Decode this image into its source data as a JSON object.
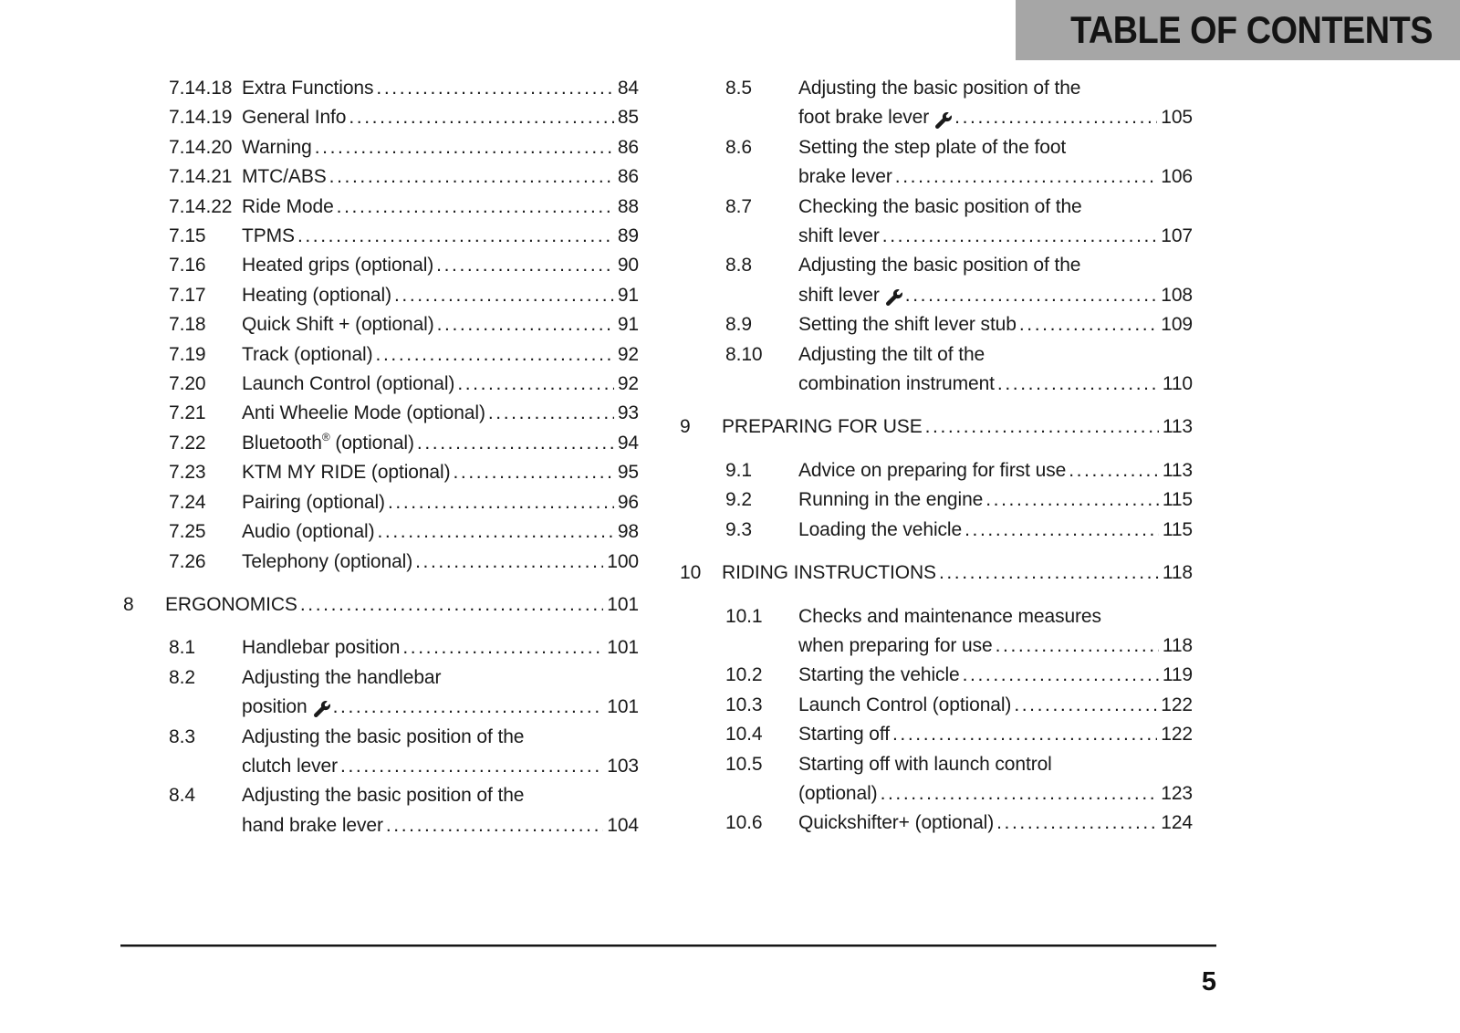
{
  "header": {
    "title": "TABLE OF CONTENTS"
  },
  "footer": {
    "page_number": "5"
  },
  "colors": {
    "header_bg": "#a6a6a6",
    "text": "#1a1a1a"
  },
  "icons": {
    "wrench": "wrench-icon"
  },
  "toc": {
    "columns": [
      {
        "blocks": [
          {
            "type": "entries",
            "items": [
              {
                "num": "7.14.18",
                "lines": [
                  "Extra Functions"
                ],
                "page": "84"
              },
              {
                "num": "7.14.19",
                "lines": [
                  "General Info"
                ],
                "page": "85"
              },
              {
                "num": "7.14.20",
                "lines": [
                  "Warning"
                ],
                "page": "86"
              },
              {
                "num": "7.14.21",
                "lines": [
                  "MTC/ABS"
                ],
                "page": "86"
              },
              {
                "num": "7.14.22",
                "lines": [
                  "Ride Mode"
                ],
                "page": "88"
              },
              {
                "num": "7.15",
                "lines": [
                  "TPMS"
                ],
                "page": "89"
              },
              {
                "num": "7.16",
                "lines": [
                  "Heated grips (optional)"
                ],
                "page": "90"
              },
              {
                "num": "7.17",
                "lines": [
                  "Heating (optional)"
                ],
                "page": "91"
              },
              {
                "num": "7.18",
                "lines": [
                  "Quick Shift + (optional)"
                ],
                "page": "91"
              },
              {
                "num": "7.19",
                "lines": [
                  "Track (optional)"
                ],
                "page": "92"
              },
              {
                "num": "7.20",
                "lines": [
                  "Launch Control (optional)"
                ],
                "page": "92"
              },
              {
                "num": "7.21",
                "lines": [
                  "Anti Wheelie Mode (optional)"
                ],
                "page": "93"
              },
              {
                "num": "7.22",
                "lines": [
                  "Bluetooth® (optional)"
                ],
                "page": "94"
              },
              {
                "num": "7.23",
                "lines": [
                  "KTM MY RIDE (optional)"
                ],
                "page": "95"
              },
              {
                "num": "7.24",
                "lines": [
                  "Pairing (optional)"
                ],
                "page": "96"
              },
              {
                "num": "7.25",
                "lines": [
                  "Audio (optional)"
                ],
                "page": "98"
              },
              {
                "num": "7.26",
                "lines": [
                  "Telephony (optional)"
                ],
                "page": "100"
              }
            ]
          },
          {
            "type": "chapter",
            "num": "8",
            "title": "ERGONOMICS",
            "page": "101"
          },
          {
            "type": "entries",
            "items": [
              {
                "num": "8.1",
                "lines": [
                  "Handlebar position"
                ],
                "page": "101"
              },
              {
                "num": "8.2",
                "lines": [
                  "Adjusting the handlebar",
                  "position"
                ],
                "wrench": true,
                "page": "101"
              },
              {
                "num": "8.3",
                "lines": [
                  "Adjusting the basic position of the",
                  "clutch lever"
                ],
                "page": "103"
              },
              {
                "num": "8.4",
                "lines": [
                  "Adjusting the basic position of the",
                  "hand brake lever"
                ],
                "page": "104"
              }
            ]
          }
        ]
      },
      {
        "blocks": [
          {
            "type": "entries",
            "items": [
              {
                "num": "8.5",
                "lines": [
                  "Adjusting the basic position of the",
                  "foot brake lever"
                ],
                "wrench": true,
                "page": "105"
              },
              {
                "num": "8.6",
                "lines": [
                  "Setting the step plate of the foot",
                  "brake lever"
                ],
                "page": "106"
              },
              {
                "num": "8.7",
                "lines": [
                  "Checking the basic position of the",
                  "shift lever"
                ],
                "page": "107"
              },
              {
                "num": "8.8",
                "lines": [
                  "Adjusting the basic position of the",
                  "shift lever"
                ],
                "wrench": true,
                "page": "108"
              },
              {
                "num": "8.9",
                "lines": [
                  "Setting the shift lever stub"
                ],
                "page": "109"
              },
              {
                "num": "8.10",
                "lines": [
                  "Adjusting the tilt of the",
                  "combination instrument"
                ],
                "page": "110"
              }
            ]
          },
          {
            "type": "chapter",
            "num": "9",
            "title": "PREPARING FOR USE",
            "page": "113"
          },
          {
            "type": "entries",
            "items": [
              {
                "num": "9.1",
                "lines": [
                  "Advice on preparing for first use"
                ],
                "page": "113"
              },
              {
                "num": "9.2",
                "lines": [
                  "Running in the engine"
                ],
                "page": "115"
              },
              {
                "num": "9.3",
                "lines": [
                  "Loading the vehicle"
                ],
                "page": "115"
              }
            ]
          },
          {
            "type": "chapter",
            "num": "10",
            "title": "RIDING INSTRUCTIONS",
            "page": "118"
          },
          {
            "type": "entries",
            "items": [
              {
                "num": "10.1",
                "lines": [
                  "Checks and maintenance measures",
                  "when preparing for use"
                ],
                "page": "118"
              },
              {
                "num": "10.2",
                "lines": [
                  "Starting the vehicle"
                ],
                "page": "119"
              },
              {
                "num": "10.3",
                "lines": [
                  "Launch Control (optional)"
                ],
                "page": "122"
              },
              {
                "num": "10.4",
                "lines": [
                  "Starting off"
                ],
                "page": "122"
              },
              {
                "num": "10.5",
                "lines": [
                  "Starting off with launch control",
                  "(optional)"
                ],
                "page": "123"
              },
              {
                "num": "10.6",
                "lines": [
                  "Quickshifter+ (optional)"
                ],
                "page": "124"
              }
            ]
          }
        ]
      }
    ]
  }
}
